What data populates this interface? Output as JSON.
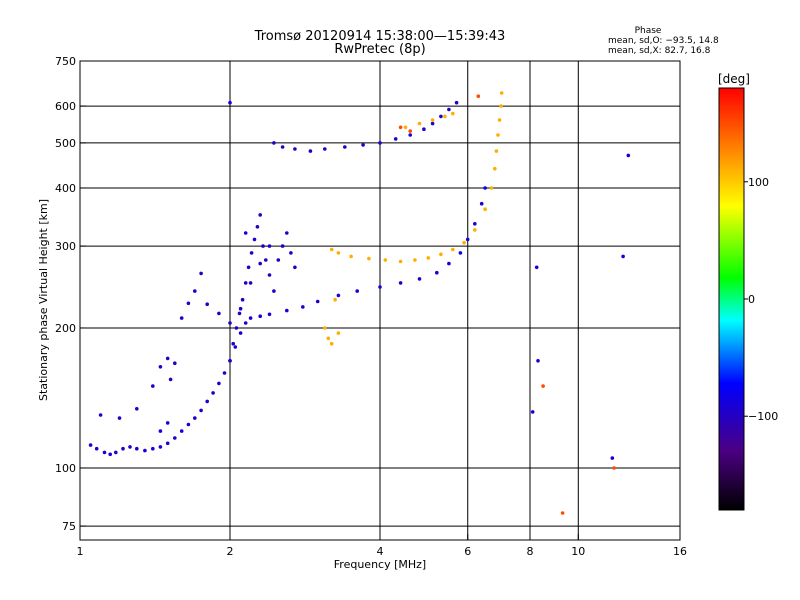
{
  "header": {
    "title_line1": "Tromsø 20120914 15:38:00—15:39:43",
    "title_line2": "RwPretec (8p)",
    "phase_heading": "Phase",
    "phase_line_o": "mean, sd,O: −93.5, 14.8",
    "phase_line_x": "mean, sd,X:  82.7, 16.8"
  },
  "colorbar": {
    "unit_label": "[deg]",
    "tick_labels": [
      "100",
      "0",
      "−100"
    ],
    "ticks": [
      100,
      0,
      -100
    ],
    "range": [
      -180,
      180
    ],
    "colors": [
      "#000000",
      "#4b0082",
      "#0000ff",
      "#00ffff",
      "#00ff00",
      "#ffff00",
      "#ff7f00",
      "#ff0000"
    ]
  },
  "chart_data": {
    "type": "scatter",
    "title": "Tromsø 20120914 15:38:00—15:39:43",
    "subtitle": "RwPretec (8p)",
    "xlabel": "Frequency [MHz]",
    "ylabel": "Stationary phase Virtual Height [km]",
    "x_scale": "log",
    "y_scale": "log",
    "xlim": [
      1,
      16
    ],
    "ylim": [
      70,
      750
    ],
    "x_ticks": [
      1,
      2,
      4,
      6,
      8,
      10,
      16
    ],
    "x_tick_labels": [
      "1",
      "2",
      "4",
      "6",
      "8",
      "10",
      "16"
    ],
    "y_ticks": [
      75,
      100,
      200,
      300,
      400,
      500,
      600,
      750
    ],
    "y_tick_labels": [
      "75",
      "100",
      "200",
      "300",
      "400",
      "500",
      "600",
      "750"
    ],
    "grid": true,
    "color_encoding": "phase in degrees",
    "series": [
      {
        "values": [
          [
            1.05,
            112,
            -95
          ],
          [
            1.08,
            110,
            -95
          ],
          [
            1.12,
            108,
            -95
          ],
          [
            1.15,
            107,
            -95
          ],
          [
            1.18,
            108,
            -95
          ],
          [
            1.22,
            110,
            -95
          ],
          [
            1.26,
            111,
            -95
          ],
          [
            1.3,
            110,
            -95
          ],
          [
            1.35,
            109,
            -95
          ],
          [
            1.4,
            110,
            -95
          ],
          [
            1.45,
            111,
            -95
          ],
          [
            1.5,
            113,
            -95
          ],
          [
            1.55,
            116,
            -95
          ],
          [
            1.6,
            120,
            -95
          ],
          [
            1.65,
            124,
            -95
          ],
          [
            1.7,
            128,
            -95
          ],
          [
            1.75,
            133,
            -95
          ],
          [
            1.8,
            139,
            -95
          ],
          [
            1.85,
            145,
            -95
          ],
          [
            1.9,
            152,
            -95
          ],
          [
            1.95,
            160,
            -95
          ],
          [
            2.0,
            170,
            -95
          ],
          [
            2.05,
            182,
            -95
          ],
          [
            2.1,
            195,
            -95
          ],
          [
            2.15,
            205,
            -95
          ],
          [
            2.2,
            210,
            -95
          ],
          [
            2.3,
            212,
            -95
          ],
          [
            2.4,
            214,
            -95
          ],
          [
            2.6,
            218,
            -95
          ],
          [
            2.8,
            222,
            -95
          ],
          [
            3.0,
            228,
            -95
          ],
          [
            3.3,
            235,
            -95
          ],
          [
            3.6,
            240,
            -95
          ],
          [
            4.0,
            245,
            -95
          ],
          [
            4.4,
            250,
            -95
          ],
          [
            4.8,
            255,
            -95
          ],
          [
            5.2,
            263,
            -95
          ],
          [
            5.5,
            275,
            -95
          ],
          [
            5.8,
            290,
            -95
          ],
          [
            6.0,
            310,
            -95
          ],
          [
            6.2,
            335,
            -95
          ],
          [
            6.4,
            370,
            -95
          ],
          [
            6.5,
            400,
            -95
          ]
        ]
      },
      {
        "values": [
          [
            1.1,
            130,
            -100
          ],
          [
            1.2,
            128,
            -100
          ],
          [
            1.3,
            134,
            -100
          ],
          [
            1.4,
            150,
            -100
          ],
          [
            1.45,
            165,
            -100
          ],
          [
            1.5,
            172,
            -100
          ],
          [
            1.52,
            155,
            -100
          ],
          [
            1.55,
            168,
            -100
          ],
          [
            1.6,
            210,
            -100
          ],
          [
            1.65,
            226,
            -100
          ],
          [
            1.7,
            240,
            -100
          ],
          [
            1.75,
            262,
            -100
          ],
          [
            1.8,
            225,
            -100
          ],
          [
            1.9,
            215,
            -100
          ],
          [
            2.0,
            205,
            -100
          ],
          [
            2.1,
            220,
            -100
          ],
          [
            2.2,
            250,
            -100
          ],
          [
            2.3,
            275,
            -100
          ],
          [
            2.4,
            300,
            -100
          ]
        ]
      },
      {
        "values": [
          [
            2.0,
            170,
            -100
          ],
          [
            2.03,
            185,
            -100
          ],
          [
            2.06,
            200,
            -100
          ],
          [
            2.09,
            215,
            -100
          ],
          [
            2.12,
            230,
            -100
          ],
          [
            2.15,
            250,
            -100
          ],
          [
            2.18,
            270,
            -100
          ],
          [
            2.21,
            290,
            -100
          ],
          [
            2.24,
            310,
            -100
          ],
          [
            2.27,
            330,
            -100
          ],
          [
            2.3,
            350,
            -100
          ],
          [
            2.33,
            300,
            -100
          ],
          [
            2.36,
            280,
            -100
          ],
          [
            2.4,
            260,
            -100
          ],
          [
            2.45,
            240,
            -100
          ],
          [
            2.5,
            280,
            -100
          ],
          [
            2.55,
            300,
            -100
          ],
          [
            2.6,
            320,
            -100
          ],
          [
            2.65,
            290,
            -100
          ],
          [
            2.7,
            270,
            -100
          ]
        ]
      },
      {
        "values": [
          [
            2.45,
            500,
            -100
          ],
          [
            2.55,
            490,
            -100
          ],
          [
            2.7,
            485,
            -100
          ],
          [
            2.9,
            480,
            -100
          ],
          [
            3.1,
            485,
            -100
          ],
          [
            3.4,
            490,
            -100
          ],
          [
            3.7,
            495,
            -100
          ],
          [
            4.0,
            500,
            -100
          ],
          [
            4.3,
            510,
            -100
          ],
          [
            4.6,
            520,
            -100
          ],
          [
            4.9,
            535,
            -100
          ],
          [
            5.1,
            550,
            -100
          ],
          [
            5.3,
            570,
            -100
          ],
          [
            5.5,
            590,
            -100
          ],
          [
            5.7,
            610,
            -100
          ]
        ]
      },
      {
        "values": [
          [
            3.2,
            295,
            110
          ],
          [
            3.3,
            290,
            110
          ],
          [
            3.5,
            285,
            110
          ],
          [
            3.8,
            282,
            110
          ],
          [
            4.1,
            280,
            110
          ],
          [
            4.4,
            278,
            110
          ],
          [
            4.7,
            280,
            110
          ],
          [
            5.0,
            283,
            110
          ],
          [
            5.3,
            288,
            110
          ],
          [
            5.6,
            295,
            110
          ],
          [
            5.9,
            305,
            110
          ],
          [
            6.2,
            325,
            110
          ],
          [
            6.5,
            360,
            110
          ],
          [
            6.7,
            400,
            110
          ],
          [
            6.8,
            440,
            110
          ],
          [
            6.85,
            480,
            110
          ],
          [
            6.9,
            520,
            110
          ],
          [
            6.95,
            560,
            110
          ],
          [
            7.0,
            600,
            110
          ],
          [
            7.02,
            640,
            110
          ]
        ]
      },
      {
        "values": [
          [
            4.5,
            540,
            110
          ],
          [
            4.8,
            550,
            110
          ],
          [
            5.1,
            560,
            110
          ],
          [
            5.4,
            570,
            110
          ],
          [
            5.6,
            578,
            110
          ],
          [
            3.1,
            200,
            110
          ],
          [
            3.15,
            190,
            110
          ],
          [
            3.2,
            185,
            110
          ],
          [
            3.3,
            195,
            110
          ],
          [
            3.25,
            230,
            110
          ]
        ]
      },
      {
        "values": [
          [
            1.45,
            120,
            -90
          ],
          [
            1.5,
            125,
            -90
          ],
          [
            8.3,
            170,
            -90
          ],
          [
            8.1,
            132,
            -90
          ],
          [
            8.25,
            270,
            -90
          ],
          [
            11.7,
            105,
            -90
          ],
          [
            12.6,
            470,
            -90
          ],
          [
            12.3,
            285,
            -90
          ],
          [
            2.0,
            610,
            -90
          ],
          [
            2.15,
            320,
            -90
          ]
        ]
      },
      {
        "values": [
          [
            4.6,
            530,
            150
          ],
          [
            4.4,
            540,
            150
          ],
          [
            6.3,
            630,
            150
          ],
          [
            8.5,
            150,
            150
          ],
          [
            9.3,
            80,
            150
          ],
          [
            11.8,
            100,
            150
          ]
        ]
      }
    ]
  }
}
